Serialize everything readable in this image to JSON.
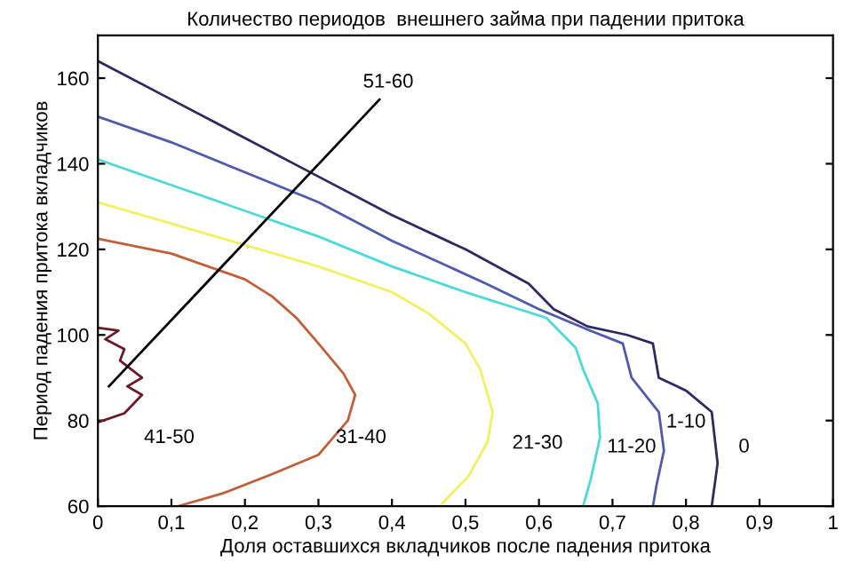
{
  "chart_data": {
    "type": "line",
    "title": "Количество периодов  внешнего займа при падении притока",
    "xlabel": "Доля оставшихся вкладчиков после падения притока",
    "ylabel": "Период падения притока вкладчиков",
    "xlim": [
      0,
      1
    ],
    "ylim": [
      60,
      170
    ],
    "xticks": [
      0,
      {
        "value": 0.1,
        "label": "0,1"
      },
      {
        "value": 0.2,
        "label": "0,2"
      },
      {
        "value": 0.3,
        "label": "0,3"
      },
      {
        "value": 0.4,
        "label": "0,4"
      },
      {
        "value": 0.5,
        "label": "0,5"
      },
      {
        "value": 0.6,
        "label": "0,6"
      },
      {
        "value": 0.7,
        "label": "0,7"
      },
      {
        "value": 0.8,
        "label": "0,8"
      },
      {
        "value": 0.9,
        "label": "0,9"
      },
      1
    ],
    "yticks": [
      60,
      80,
      100,
      120,
      140,
      160
    ],
    "grid": false,
    "marker": "none",
    "line_style": "solid",
    "series": [
      {
        "color": "#2e2a5e",
        "x": [
          0,
          0.1,
          0.2,
          0.3,
          0.4,
          0.5,
          0.586,
          0.62,
          0.666,
          0.72,
          0.755,
          0.763,
          0.8,
          0.835,
          0.843,
          0.835
        ],
        "values": [
          164,
          155,
          146,
          137,
          128,
          120,
          112,
          106,
          102,
          100,
          98,
          90,
          87,
          82,
          70,
          60
        ]
      },
      {
        "color": "#4f5aa8",
        "x": [
          0,
          0.1,
          0.2,
          0.3,
          0.4,
          0.528,
          0.6,
          0.67,
          0.714,
          0.726,
          0.763,
          0.77,
          0.76,
          0.755
        ],
        "values": [
          151,
          145,
          138,
          131,
          122,
          112,
          106,
          101,
          98,
          90,
          82,
          73,
          65,
          60
        ]
      },
      {
        "color": "#4fd8d8",
        "x": [
          0,
          0.1,
          0.2,
          0.3,
          0.4,
          0.5,
          0.61,
          0.65,
          0.66,
          0.68,
          0.683,
          0.67,
          0.66
        ],
        "values": [
          141,
          135,
          129,
          123,
          116,
          110,
          104,
          97,
          92,
          84,
          76,
          66,
          60
        ]
      },
      {
        "color": "#f0f060",
        "x": [
          0,
          0.1,
          0.2,
          0.3,
          0.4,
          0.45,
          0.5,
          0.52,
          0.537,
          0.53,
          0.504,
          0.465
        ],
        "values": [
          131,
          126,
          121,
          116,
          110,
          105,
          98,
          92,
          82,
          75,
          67,
          60
        ]
      },
      {
        "color": "#c0603a",
        "x": [
          0,
          0.1,
          0.2,
          0.237,
          0.27,
          0.3,
          0.334,
          0.35,
          0.34,
          0.32,
          0.3,
          0.237,
          0.17,
          0.109
        ],
        "values": [
          122.5,
          119,
          113,
          109,
          104,
          98,
          91,
          86,
          80,
          76,
          72,
          67.5,
          63,
          60
        ]
      },
      {
        "color": "#6a1a2a",
        "x": [
          0,
          0.028,
          0.01,
          0.036,
          0.03,
          0.06,
          0.04,
          0.06,
          0.036,
          0
        ],
        "values": [
          101.7,
          101,
          99,
          96.7,
          94,
          90,
          88,
          86,
          81.7,
          79.6
        ]
      },
      {
        "color": "#000000",
        "x": [
          0.015,
          0.383
        ],
        "values": [
          88,
          155
        ]
      }
    ],
    "annotations": [
      "51-60",
      "41-50",
      "31-40",
      "21-30",
      "11-20",
      "1-10",
      "0"
    ]
  }
}
